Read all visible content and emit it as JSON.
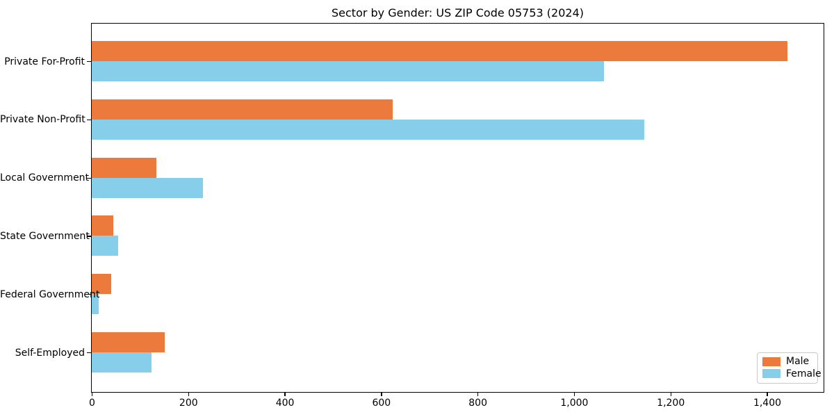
{
  "chart_data": {
    "type": "bar",
    "orientation": "horizontal",
    "title": "Sector by Gender: US ZIP Code 05753 (2024)",
    "categories": [
      "Private For-Profit",
      "Private Non-Profit",
      "Local Government",
      "State Government",
      "Federal Government",
      "Self-Employed"
    ],
    "series": [
      {
        "name": "Male",
        "color": "#EB7A3C",
        "values": [
          1443,
          624,
          134,
          45,
          40,
          152
        ]
      },
      {
        "name": "Female",
        "color": "#87CEEB",
        "values": [
          1062,
          1146,
          230,
          55,
          14,
          124
        ]
      }
    ],
    "xlabel": "",
    "ylabel": "",
    "xlim": [
      0,
      1516
    ],
    "xticks": [
      0,
      200,
      400,
      600,
      800,
      1000,
      1200,
      1400
    ],
    "xtick_labels": [
      "0",
      "200",
      "400",
      "600",
      "800",
      "1,000",
      "1,200",
      "1,400"
    ],
    "legend": {
      "position": "lower right",
      "entries": [
        "Male",
        "Female"
      ]
    },
    "grid": false,
    "background_color": "#ffffff",
    "frame_color": "#000000"
  }
}
